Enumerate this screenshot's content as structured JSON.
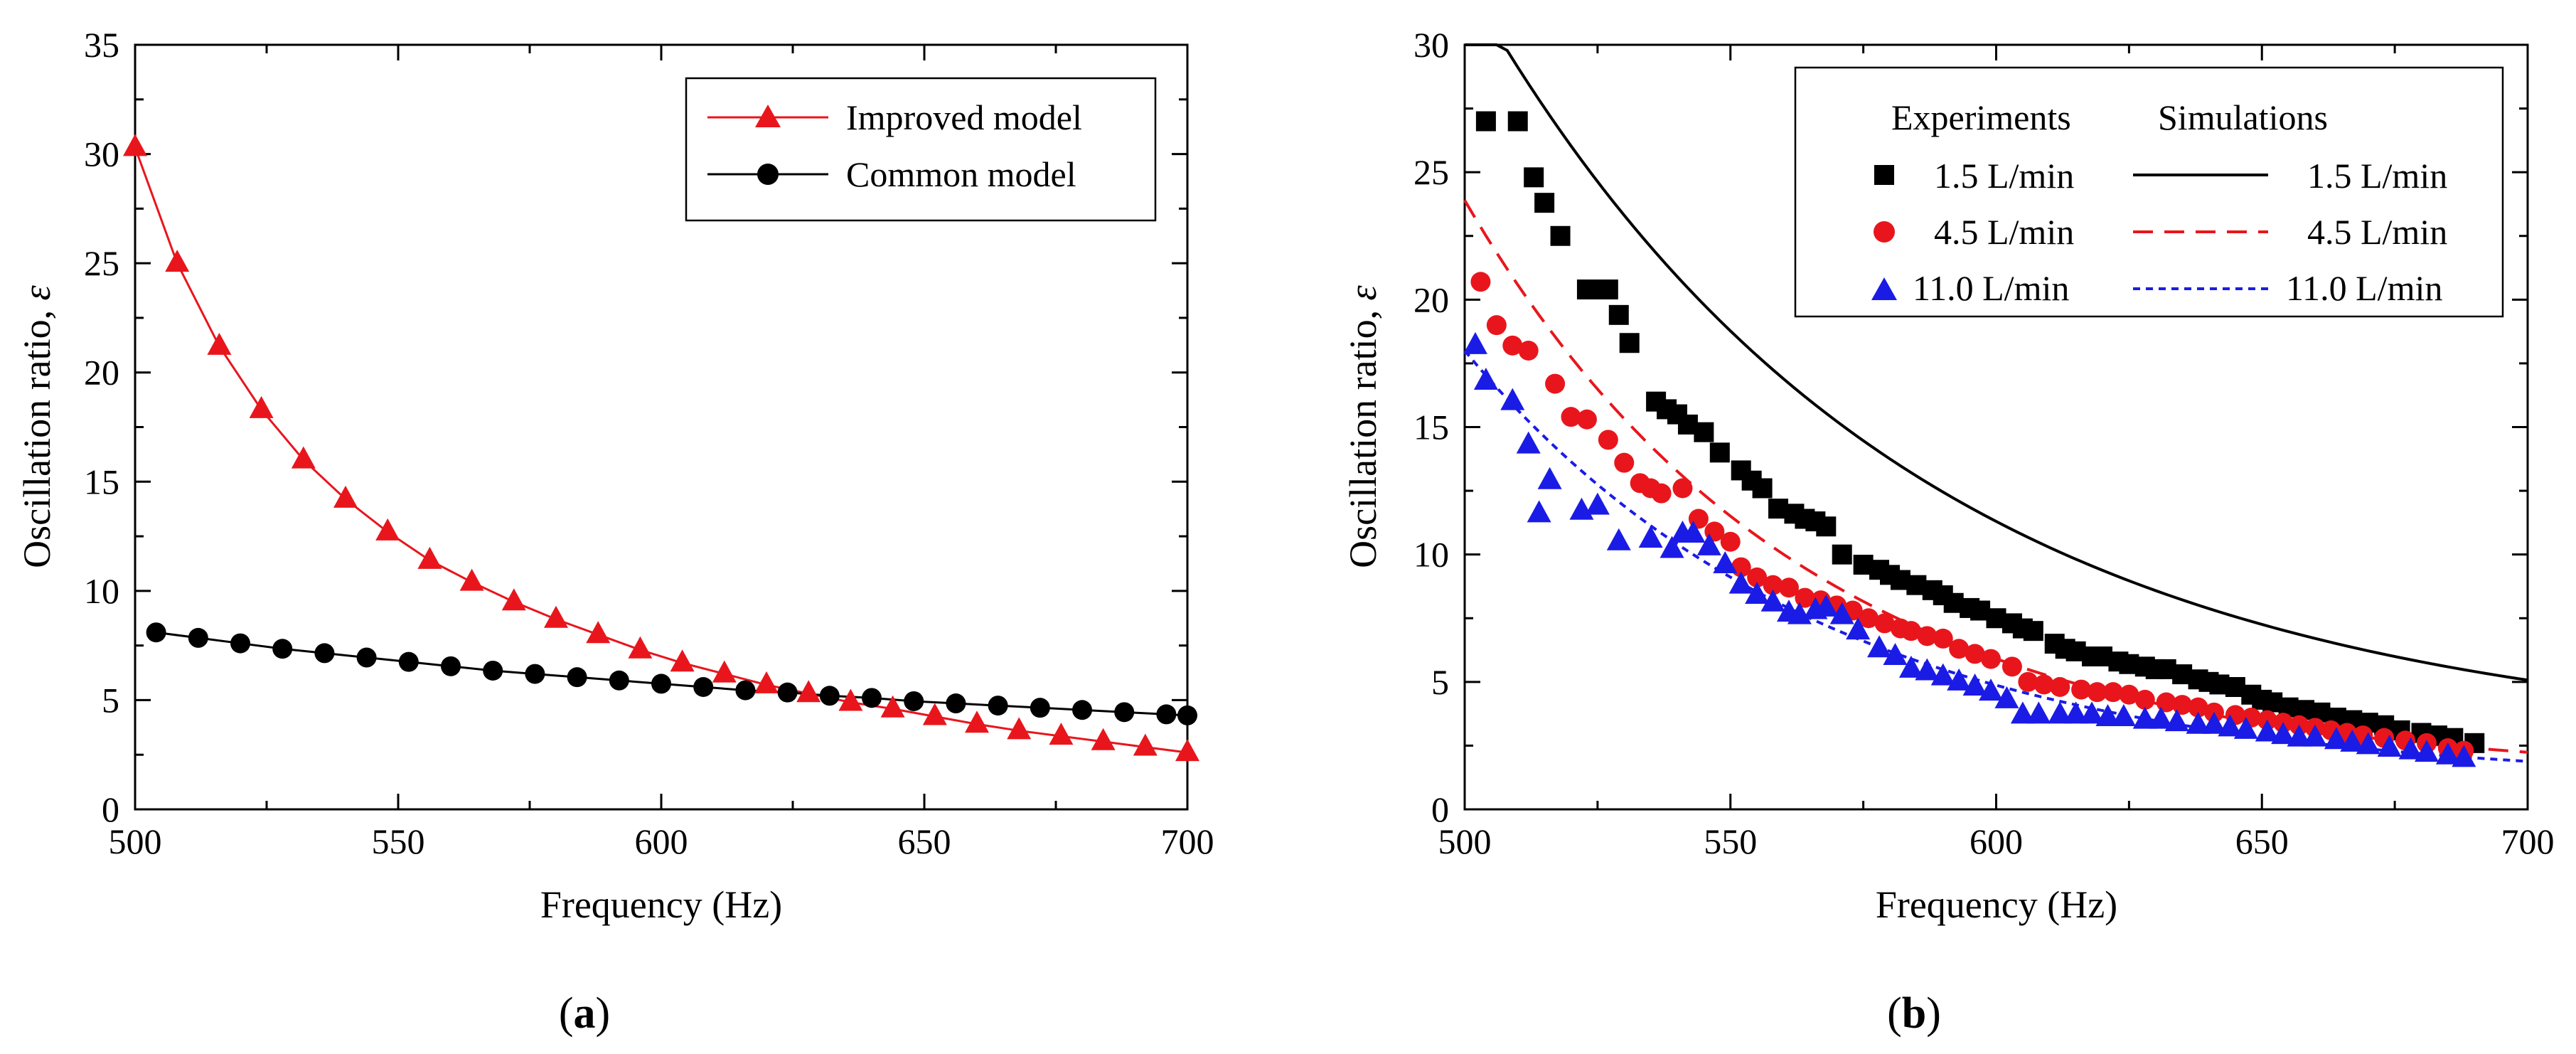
{
  "colors": {
    "red": "#e8161c",
    "black": "#000000",
    "blue": "#1b1be6"
  },
  "chart_data": [
    {
      "type": "line",
      "panel": "a",
      "caption_open": "(",
      "caption_letter": "a",
      "caption_close": ")",
      "xlabel": "Frequency (Hz)",
      "ylabel": "Oscillation ratio, ",
      "ylabel_symbol": "ε",
      "xlim": [
        500,
        700
      ],
      "ylim": [
        0,
        35
      ],
      "xticks": [
        500,
        550,
        600,
        650,
        700
      ],
      "yticks": [
        0,
        5,
        10,
        15,
        20,
        25,
        30,
        35
      ],
      "legend_position": "top-right",
      "series": [
        {
          "name": "Improved model",
          "color": "#e8161c",
          "marker": "triangle",
          "line": "solid",
          "x": [
            500,
            508,
            516,
            524,
            532,
            540,
            548,
            556,
            564,
            572,
            580,
            588,
            596,
            604,
            612,
            620,
            628,
            636,
            644,
            652,
            660,
            668,
            676,
            684,
            692,
            700
          ],
          "y": [
            30.3,
            25.0,
            21.2,
            18.3,
            16.0,
            14.2,
            12.7,
            11.4,
            10.4,
            9.5,
            8.7,
            8.0,
            7.3,
            6.7,
            6.2,
            5.7,
            5.3,
            4.9,
            4.6,
            4.25,
            3.9,
            3.6,
            3.35,
            3.1,
            2.85,
            2.6
          ]
        },
        {
          "name": "Common model",
          "color": "#000000",
          "marker": "circle",
          "line": "solid",
          "x": [
            504,
            512,
            520,
            528,
            536,
            544,
            552,
            560,
            568,
            576,
            584,
            592,
            600,
            608,
            616,
            624,
            632,
            640,
            648,
            656,
            664,
            672,
            680,
            688,
            696,
            700
          ],
          "y": [
            8.1,
            7.85,
            7.6,
            7.35,
            7.15,
            6.95,
            6.75,
            6.55,
            6.35,
            6.2,
            6.05,
            5.9,
            5.75,
            5.6,
            5.45,
            5.35,
            5.2,
            5.1,
            4.95,
            4.85,
            4.75,
            4.65,
            4.55,
            4.45,
            4.35,
            4.3
          ]
        }
      ]
    },
    {
      "type": "scatter",
      "panel": "b",
      "caption_open": "(",
      "caption_letter": "b",
      "caption_close": ")",
      "xlabel": "Frequency (Hz)",
      "ylabel": "Oscillation ratio, ",
      "ylabel_symbol": "ε",
      "xlim": [
        500,
        700
      ],
      "ylim": [
        0,
        30
      ],
      "xticks": [
        500,
        550,
        600,
        650,
        700
      ],
      "yticks": [
        0,
        5,
        10,
        15,
        20,
        25,
        30
      ],
      "legend_position": "top-right",
      "legend_heading_experiments": "Experiments",
      "legend_heading_simulations": "Simulations",
      "experiments": [
        {
          "name": "1.5 L/min",
          "color": "#000000",
          "marker": "square",
          "x": [
            504,
            510,
            513,
            515,
            518,
            523,
            525,
            527,
            529,
            531,
            536,
            538,
            540,
            542,
            545,
            548,
            552,
            554,
            556,
            559,
            562,
            564,
            566,
            568,
            571,
            575,
            578,
            580,
            582,
            585,
            588,
            590,
            592,
            595,
            597,
            600,
            603,
            605,
            607,
            611,
            613,
            615,
            618,
            620,
            623,
            625,
            628,
            630,
            632,
            635,
            638,
            640,
            642,
            645,
            648,
            650,
            652,
            655,
            658,
            661,
            664,
            667,
            670,
            673,
            676,
            680,
            683,
            686,
            690
          ],
          "y": [
            27.0,
            27.0,
            24.8,
            23.8,
            22.5,
            20.4,
            20.4,
            20.4,
            19.4,
            18.3,
            16.0,
            15.7,
            15.5,
            15.1,
            14.8,
            14.0,
            13.3,
            12.9,
            12.6,
            11.8,
            11.6,
            11.4,
            11.3,
            11.1,
            10.0,
            9.6,
            9.4,
            9.2,
            9.0,
            8.8,
            8.6,
            8.4,
            8.1,
            7.9,
            7.8,
            7.5,
            7.3,
            7.1,
            7.0,
            6.5,
            6.3,
            6.2,
            6.0,
            6.0,
            5.8,
            5.7,
            5.6,
            5.5,
            5.5,
            5.3,
            5.1,
            5.0,
            4.9,
            4.8,
            4.5,
            4.3,
            4.2,
            4.0,
            3.9,
            3.8,
            3.6,
            3.5,
            3.4,
            3.3,
            3.1,
            3.0,
            2.9,
            2.8,
            2.6
          ]
        },
        {
          "name": "4.5 L/min",
          "color": "#e8161c",
          "marker": "circle",
          "x": [
            503,
            506,
            509,
            512,
            517,
            520,
            523,
            527,
            530,
            533,
            535,
            537,
            541,
            544,
            547,
            550,
            552,
            555,
            558,
            561,
            564,
            567,
            570,
            573,
            576,
            579,
            582,
            584,
            587,
            590,
            593,
            596,
            599,
            603,
            606,
            609,
            612,
            616,
            619,
            622,
            625,
            628,
            632,
            635,
            638,
            641,
            645,
            648,
            651,
            654,
            657,
            660,
            663,
            666,
            669,
            673,
            677,
            681,
            685,
            688
          ],
          "y": [
            20.7,
            19.0,
            18.2,
            18.0,
            16.7,
            15.4,
            15.3,
            14.5,
            13.6,
            12.8,
            12.6,
            12.4,
            12.6,
            11.4,
            10.9,
            10.5,
            9.5,
            9.1,
            8.8,
            8.7,
            8.3,
            8.2,
            8.0,
            7.8,
            7.5,
            7.3,
            7.1,
            7.0,
            6.8,
            6.7,
            6.3,
            6.1,
            5.9,
            5.6,
            5.0,
            4.9,
            4.8,
            4.7,
            4.6,
            4.6,
            4.5,
            4.3,
            4.2,
            4.1,
            4.0,
            3.8,
            3.7,
            3.6,
            3.5,
            3.4,
            3.3,
            3.2,
            3.1,
            3.0,
            2.9,
            2.8,
            2.7,
            2.6,
            2.4,
            2.3
          ]
        },
        {
          "name": "11.0 L/min",
          "color": "#1b1be6",
          "marker": "triangle",
          "x": [
            502,
            504,
            509,
            512,
            514,
            516,
            522,
            525,
            529,
            535,
            539,
            541,
            543,
            546,
            549,
            552,
            555,
            558,
            561,
            563,
            566,
            568,
            571,
            574,
            578,
            581,
            584,
            587,
            590,
            593,
            596,
            599,
            602,
            605,
            608,
            612,
            615,
            618,
            621,
            624,
            628,
            631,
            634,
            638,
            641,
            644,
            647,
            651,
            654,
            657,
            660,
            664,
            667,
            670,
            674,
            678,
            681,
            685,
            688
          ],
          "y": [
            18.2,
            16.8,
            16.0,
            14.3,
            11.6,
            12.9,
            11.7,
            11.9,
            10.5,
            10.6,
            10.2,
            10.8,
            10.8,
            10.3,
            9.6,
            8.8,
            8.4,
            8.1,
            7.7,
            7.6,
            7.8,
            7.9,
            7.6,
            7.0,
            6.3,
            6.0,
            5.5,
            5.4,
            5.2,
            5.0,
            4.8,
            4.6,
            4.3,
            3.7,
            3.7,
            3.7,
            3.7,
            3.7,
            3.6,
            3.6,
            3.5,
            3.5,
            3.4,
            3.3,
            3.3,
            3.2,
            3.1,
            3.0,
            2.9,
            2.8,
            2.8,
            2.7,
            2.6,
            2.5,
            2.4,
            2.3,
            2.2,
            2.1,
            2.0
          ]
        }
      ],
      "simulations": [
        {
          "name": "1.5 L/min",
          "color": "#000000",
          "dash": "solid",
          "curve": {
            "a": 2.5,
            "b": 30.1,
            "k": 0.0123
          }
        },
        {
          "name": "4.5 L/min",
          "color": "#e8161c",
          "dash": "long",
          "curve": {
            "a": 1.3,
            "b": 22.6,
            "k": 0.0159
          }
        },
        {
          "name": "11.0 L/min",
          "color": "#1b1be6",
          "dash": "short",
          "curve": {
            "a": 1.0,
            "b": 17.0,
            "k": 0.0148
          }
        }
      ]
    }
  ]
}
